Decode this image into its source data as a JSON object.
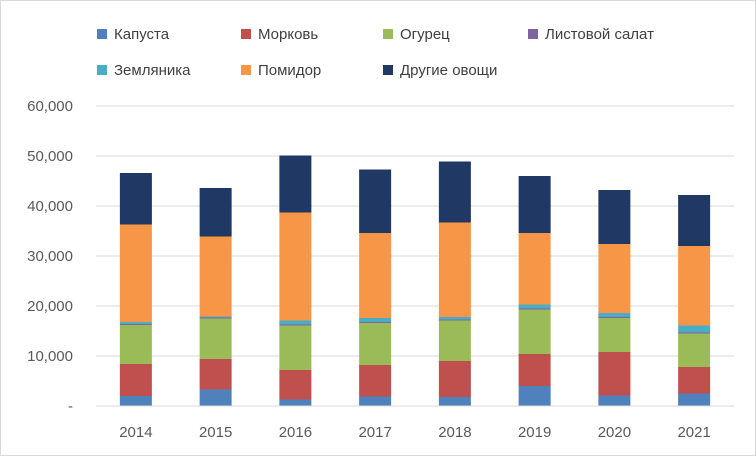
{
  "chart_data": {
    "type": "bar",
    "stacked": true,
    "categories": [
      "2014",
      "2015",
      "2016",
      "2017",
      "2018",
      "2019",
      "2020",
      "2021"
    ],
    "series": [
      {
        "name": "Капуста",
        "color": "#4f81bd",
        "values": [
          2000,
          3300,
          1300,
          1900,
          1800,
          4000,
          2100,
          2500
        ]
      },
      {
        "name": "Морковь",
        "color": "#c0504d",
        "values": [
          6400,
          6100,
          5900,
          6300,
          7200,
          6400,
          8700,
          5300
        ]
      },
      {
        "name": "Огурец",
        "color": "#9bbb59",
        "values": [
          7800,
          8100,
          8900,
          8400,
          8100,
          8900,
          6800,
          6700
        ]
      },
      {
        "name": "Листовой салат",
        "color": "#8064a2",
        "values": [
          200,
          200,
          200,
          200,
          200,
          200,
          200,
          200
        ]
      },
      {
        "name": "Земляника",
        "color": "#4bacc6",
        "values": [
          400,
          200,
          800,
          800,
          500,
          800,
          800,
          1400
        ]
      },
      {
        "name": "Помидор",
        "color": "#f79646",
        "values": [
          19500,
          16000,
          21600,
          17000,
          18900,
          14300,
          13800,
          15900
        ]
      },
      {
        "name": "Другие овощи",
        "color": "#1f3864",
        "values": [
          10300,
          9700,
          11400,
          12700,
          12200,
          11400,
          10800,
          10200
        ]
      }
    ],
    "ylim": [
      0,
      60000
    ],
    "yticks": [
      0,
      10000,
      20000,
      30000,
      40000,
      50000,
      60000
    ],
    "ytick_labels": [
      "-",
      "10,000",
      "20,000",
      "30,000",
      "40,000",
      "50,000",
      "60,000"
    ],
    "grid": true,
    "legend_position": "top"
  }
}
